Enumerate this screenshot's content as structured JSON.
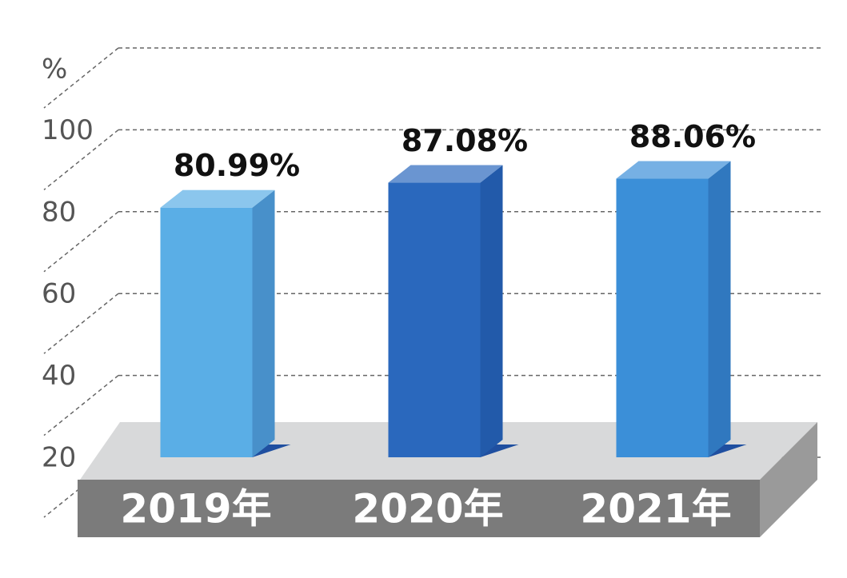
{
  "chart_data": {
    "type": "bar3d",
    "y_label": "%",
    "categories": [
      "2019年",
      "2020年",
      "2021年"
    ],
    "values": [
      80.99,
      87.08,
      88.06
    ],
    "value_labels": [
      "80.99%",
      "87.08%",
      "88.06%"
    ],
    "colors": [
      "#5aaee6",
      "#2a68bd",
      "#3b8fd8"
    ],
    "ylim": [
      20,
      120
    ],
    "yticks": [
      20,
      40,
      60,
      80,
      100
    ],
    "grid": true
  }
}
